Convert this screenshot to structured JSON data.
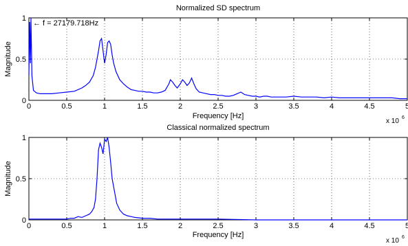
{
  "colors": {
    "line": "#0000ff",
    "axis": "#000000",
    "grid": "#000000",
    "background": "#ffffff"
  },
  "chart_data": [
    {
      "type": "line",
      "title": "Normalized SD spectrum",
      "xlabel": "Frequency [Hz]",
      "ylabel": "Magnitude",
      "x_exponent_label": "x 10",
      "x_exponent_power": "6",
      "xlim": [
        0,
        5000000
      ],
      "ylim": [
        0,
        1
      ],
      "xticks": [
        0,
        500000,
        1000000,
        1500000,
        2000000,
        2500000,
        3000000,
        3500000,
        4000000,
        4500000,
        5000000
      ],
      "xtick_labels": [
        "0",
        "0.5",
        "1",
        "1.5",
        "2",
        "2.5",
        "3",
        "3.5",
        "4",
        "4.5",
        "5"
      ],
      "yticks": [
        0,
        0.5,
        1
      ],
      "ytick_labels": [
        "0",
        "0.5",
        "1"
      ],
      "grid": true,
      "annotation": {
        "text": "← f = 27179.718Hz",
        "x": 27179.718,
        "y": 1
      },
      "series": [
        {
          "x": [
            0,
            10000,
            20000,
            27180,
            40000,
            60000,
            100000,
            150000,
            200000,
            300000,
            400000,
            500000,
            600000,
            700000,
            750000,
            800000,
            850000,
            880000,
            900000,
            920000,
            940000,
            960000,
            980000,
            1000000,
            1020000,
            1040000,
            1060000,
            1080000,
            1100000,
            1120000,
            1150000,
            1200000,
            1250000,
            1300000,
            1350000,
            1400000,
            1450000,
            1500000,
            1550000,
            1600000,
            1650000,
            1700000,
            1750000,
            1800000,
            1850000,
            1870000,
            1900000,
            1930000,
            1960000,
            2000000,
            2030000,
            2060000,
            2090000,
            2120000,
            2150000,
            2180000,
            2210000,
            2250000,
            2300000,
            2350000,
            2400000,
            2450000,
            2500000,
            2550000,
            2600000,
            2650000,
            2700000,
            2750000,
            2800000,
            2850000,
            2900000,
            2950000,
            3000000,
            3050000,
            3100000,
            3150000,
            3200000,
            3300000,
            3400000,
            3500000,
            3600000,
            3700000,
            3800000,
            3900000,
            4000000,
            4100000,
            4200000,
            4300000,
            4400000,
            4500000,
            4600000,
            4700000,
            4800000,
            4900000,
            5000000
          ],
          "y": [
            0.3,
            0.95,
            0.45,
            1.0,
            0.3,
            0.12,
            0.09,
            0.08,
            0.08,
            0.08,
            0.09,
            0.1,
            0.11,
            0.15,
            0.18,
            0.22,
            0.3,
            0.4,
            0.5,
            0.6,
            0.72,
            0.75,
            0.6,
            0.45,
            0.55,
            0.7,
            0.72,
            0.68,
            0.55,
            0.45,
            0.35,
            0.25,
            0.2,
            0.16,
            0.13,
            0.12,
            0.11,
            0.11,
            0.1,
            0.1,
            0.09,
            0.09,
            0.1,
            0.12,
            0.2,
            0.25,
            0.22,
            0.18,
            0.15,
            0.2,
            0.25,
            0.22,
            0.18,
            0.21,
            0.27,
            0.2,
            0.14,
            0.1,
            0.09,
            0.08,
            0.07,
            0.07,
            0.06,
            0.06,
            0.05,
            0.05,
            0.06,
            0.08,
            0.1,
            0.07,
            0.06,
            0.05,
            0.05,
            0.04,
            0.05,
            0.05,
            0.04,
            0.04,
            0.04,
            0.05,
            0.04,
            0.04,
            0.04,
            0.03,
            0.04,
            0.03,
            0.03,
            0.03,
            0.03,
            0.03,
            0.03,
            0.03,
            0.03,
            0.02,
            0.02
          ]
        }
      ]
    },
    {
      "type": "line",
      "title": "Classical normalized spectrum",
      "xlabel": "Frequency [Hz]",
      "ylabel": "Magnitude",
      "x_exponent_label": "x 10",
      "x_exponent_power": "6",
      "xlim": [
        0,
        5000000
      ],
      "ylim": [
        0,
        1
      ],
      "xticks": [
        0,
        500000,
        1000000,
        1500000,
        2000000,
        2500000,
        3000000,
        3500000,
        4000000,
        4500000,
        5000000
      ],
      "xtick_labels": [
        "0",
        "0.5",
        "1",
        "1.5",
        "2",
        "2.5",
        "3",
        "3.5",
        "4",
        "4.5",
        "5"
      ],
      "yticks": [
        0,
        0.5,
        1
      ],
      "ytick_labels": [
        "0",
        "0.5",
        "1"
      ],
      "grid": true,
      "series": [
        {
          "x": [
            0,
            100000,
            200000,
            300000,
            400000,
            500000,
            550000,
            600000,
            650000,
            700000,
            750000,
            800000,
            830000,
            860000,
            880000,
            900000,
            920000,
            940000,
            960000,
            980000,
            1000000,
            1020000,
            1040000,
            1060000,
            1080000,
            1100000,
            1130000,
            1160000,
            1200000,
            1250000,
            1300000,
            1350000,
            1400000,
            1500000,
            1600000,
            1700000,
            1800000,
            2000000,
            2500000,
            3000000,
            3500000,
            4000000,
            4500000,
            5000000
          ],
          "y": [
            0.01,
            0.01,
            0.01,
            0.01,
            0.01,
            0.01,
            0.02,
            0.02,
            0.04,
            0.03,
            0.05,
            0.07,
            0.1,
            0.15,
            0.25,
            0.5,
            0.85,
            0.93,
            0.88,
            0.8,
            0.98,
            0.95,
            1.0,
            0.88,
            0.7,
            0.5,
            0.35,
            0.2,
            0.12,
            0.07,
            0.05,
            0.04,
            0.03,
            0.02,
            0.02,
            0.01,
            0.01,
            0.01,
            0.01,
            0.0,
            0.0,
            0.0,
            0.0,
            0.0
          ]
        }
      ]
    }
  ]
}
